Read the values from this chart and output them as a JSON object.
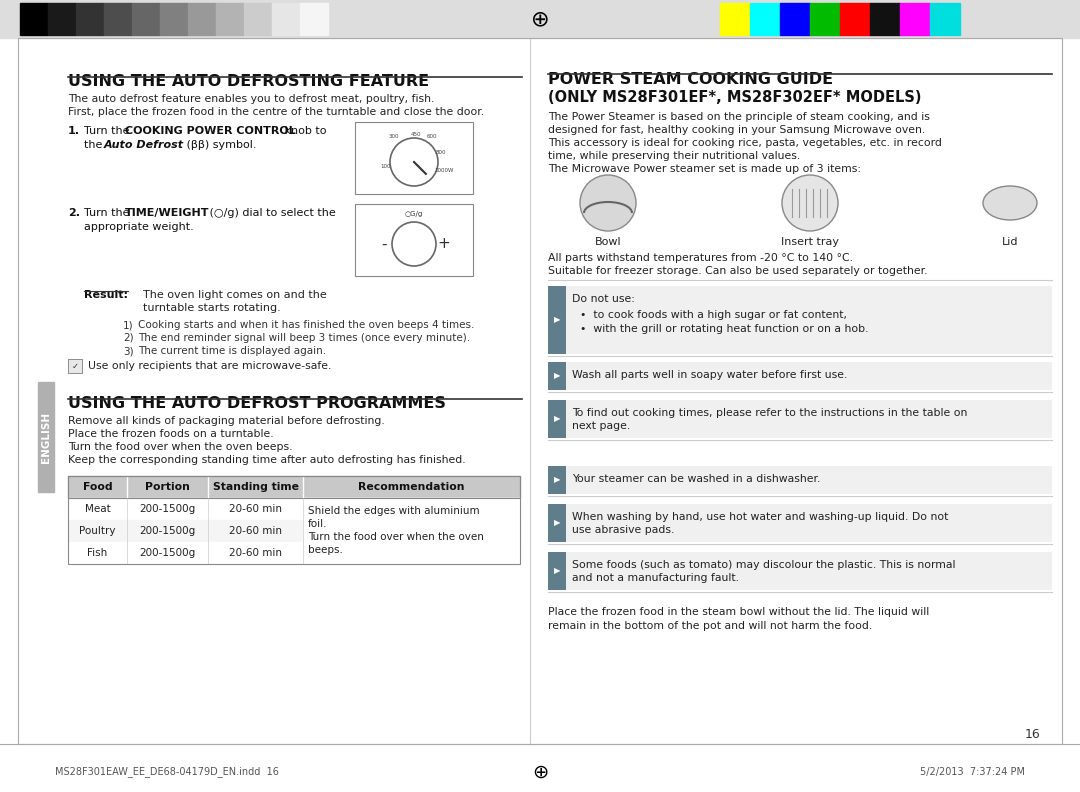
{
  "page_bg": "#ffffff",
  "header_stripe_colors": [
    "#000000",
    "#1a1a1a",
    "#333333",
    "#4d4d4d",
    "#666666",
    "#808080",
    "#999999",
    "#b3b3b3",
    "#cccccc",
    "#e6e6e6",
    "#f5f5f5"
  ],
  "color_stripe_colors": [
    "#ffff00",
    "#00ffff",
    "#0000ff",
    "#00bb00",
    "#ff0000",
    "#111111",
    "#ff00ff",
    "#00dddd"
  ],
  "left_title": "USING THE AUTO DEFROSTING FEATURE",
  "left_intro_1": "The auto defrost feature enables you to defrost meat, poultry, fish.",
  "left_intro_2": "First, place the frozen food in the centre of the turntable and close the door.",
  "right_title": "POWER STEAM COOKING GUIDE",
  "right_subtitle": "(ONLY MS28F301EF*, MS28F302EF* MODELS)",
  "sidebar_label": "ENGLISH",
  "footer_left": "MS28F301EAW_EE_DE68-04179D_EN.indd  16",
  "footer_right": "5/2/2013  7:37:24 PM",
  "page_number": "16",
  "table_headers": [
    "Food",
    "Portion",
    "Standing time",
    "Recommendation"
  ],
  "table_rows": [
    [
      "Meat",
      "200-1500g",
      "20-60 min"
    ],
    [
      "Poultry",
      "200-1500g",
      "20-60 min"
    ],
    [
      "Fish",
      "200-1500g",
      "20-60 min"
    ]
  ],
  "rec_lines": [
    "Shield the edges with aluminium",
    "foil.",
    "Turn the food over when the oven",
    "beeps."
  ],
  "table_header_bg": "#c8c8c8",
  "right_intro": [
    "The Power Steamer is based on the principle of steam cooking, and is",
    "designed for fast, healthy cooking in your Samsung Microwave oven.",
    "This accessory is ideal for cooking rice, pasta, vegetables, etc. in record",
    "time, while preserving their nutritional values.",
    "The Microwave Power steamer set is made up of 3 items:"
  ],
  "parts_line1": "All parts withstand temperatures from -20 °C to 140 °C.",
  "parts_line2": "Suitable for freezer storage. Can also be used separately or together.",
  "prog_lines": [
    "Remove all kinds of packaging material before defrosting.",
    "Place the frozen foods on a turntable.",
    "Turn the food over when the oven beeps.",
    "Keep the corresponding standing time after auto defrosting has finished."
  ],
  "numbered_items": [
    "Cooking starts and when it has finished the oven beeps 4 times.",
    "The end reminder signal will beep 3 times (once every minute).",
    "The current time is displayed again."
  ],
  "bot_lines": [
    "Place the frozen food in the steam bowl without the lid. The liquid will",
    "remain in the bottom of the pot and will not harm the food."
  ]
}
